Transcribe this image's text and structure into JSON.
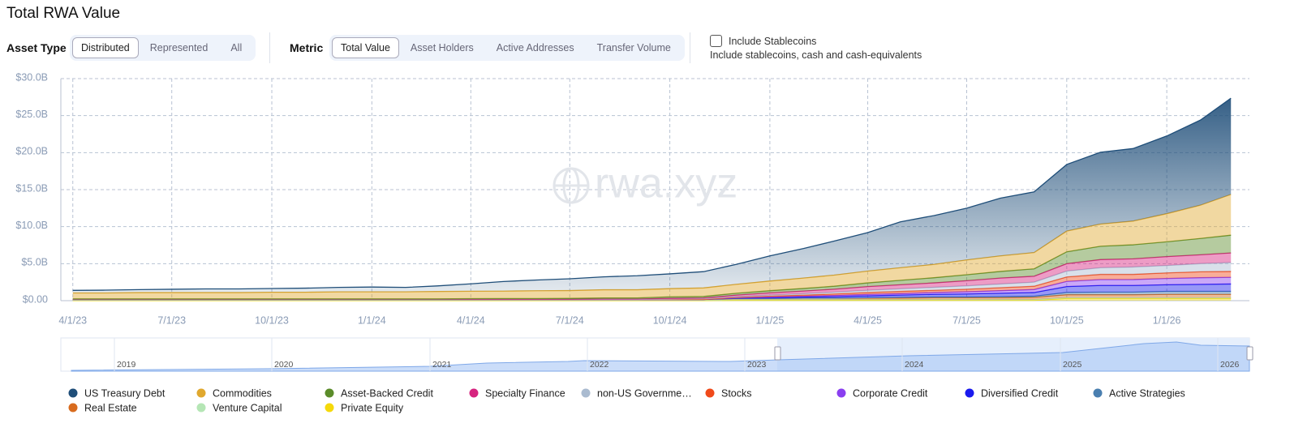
{
  "header": {
    "title": "Total RWA Value"
  },
  "controls": {
    "asset_type": {
      "label": "Asset Type",
      "options": [
        "Distributed",
        "Represented",
        "All"
      ]
    },
    "metric": {
      "label": "Metric",
      "options": [
        "Total Value",
        "Asset Holders",
        "Active Addresses",
        "Transfer Volume"
      ]
    },
    "stablecoins": {
      "label": "Include Stablecoins",
      "description": "Include stablecoins, cash and cash-equivalents"
    }
  },
  "chart_data": {
    "type": "area",
    "stacked": true,
    "grid": true,
    "watermark": "rwa.xyz",
    "x": [
      "4/1/23",
      "5/1/23",
      "6/1/23",
      "7/1/23",
      "8/1/23",
      "9/1/23",
      "10/1/23",
      "11/1/23",
      "12/1/23",
      "1/1/24",
      "2/1/24",
      "3/1/24",
      "4/1/24",
      "5/1/24",
      "6/1/24",
      "7/1/24",
      "8/1/24",
      "9/1/24",
      "10/1/24",
      "11/1/24",
      "12/1/24",
      "1/1/25",
      "2/1/25",
      "3/1/25",
      "4/1/25",
      "5/1/25",
      "6/1/25",
      "7/1/25",
      "8/1/25",
      "9/1/25",
      "10/1/25",
      "11/1/25",
      "12/1/25",
      "1/1/26",
      "2/1/26",
      "3/1/26"
    ],
    "xlim": [
      "3/21/23",
      "3/18/26"
    ],
    "xticks": [
      "4/1/23",
      "7/1/23",
      "10/1/23",
      "1/1/24",
      "4/1/24",
      "7/1/24",
      "10/1/24",
      "1/1/25",
      "4/1/25",
      "7/1/25",
      "10/1/25",
      "1/1/26"
    ],
    "ylim": [
      0,
      30
    ],
    "yticks": [
      {
        "value": 0,
        "label": "$0.00"
      },
      {
        "value": 5,
        "label": "$5.0B"
      },
      {
        "value": 10,
        "label": "$10.0B"
      },
      {
        "value": 15,
        "label": "$15.0B"
      },
      {
        "value": 20,
        "label": "$20.0B"
      },
      {
        "value": 25,
        "label": "$25.0B"
      },
      {
        "value": 30,
        "label": "$30.0B"
      }
    ],
    "series": [
      {
        "name": "US Treasury Debt",
        "color": "#1f4e79",
        "values": [
          0.35,
          0.38,
          0.4,
          0.45,
          0.5,
          0.5,
          0.5,
          0.55,
          0.6,
          0.65,
          0.6,
          0.75,
          1.0,
          1.3,
          1.45,
          1.6,
          1.75,
          1.9,
          2.0,
          2.2,
          2.7,
          3.4,
          4.0,
          4.6,
          5.2,
          6.2,
          6.6,
          7.0,
          7.8,
          8.2,
          9.0,
          9.7,
          9.8,
          10.5,
          11.5,
          13.0
        ]
      },
      {
        "name": "Commodities",
        "color": "#e0a82e",
        "values": [
          0.8,
          0.8,
          0.85,
          0.85,
          0.85,
          0.85,
          0.9,
          0.9,
          0.95,
          0.95,
          0.95,
          1.0,
          1.0,
          1.0,
          1.05,
          1.05,
          1.1,
          1.1,
          1.1,
          1.15,
          1.2,
          1.3,
          1.4,
          1.5,
          1.6,
          1.7,
          1.8,
          2.0,
          2.1,
          2.2,
          2.8,
          3.0,
          3.2,
          3.8,
          4.5,
          5.5
        ]
      },
      {
        "name": "Asset-Backed Credit",
        "color": "#5b8c2a",
        "values": [
          0.05,
          0.05,
          0.05,
          0.05,
          0.05,
          0.05,
          0.05,
          0.05,
          0.05,
          0.05,
          0.05,
          0.05,
          0.08,
          0.1,
          0.1,
          0.12,
          0.15,
          0.15,
          0.2,
          0.2,
          0.25,
          0.3,
          0.35,
          0.4,
          0.5,
          0.6,
          0.7,
          0.8,
          0.9,
          1.0,
          1.6,
          1.8,
          1.9,
          2.0,
          2.2,
          2.4
        ]
      },
      {
        "name": "Specialty Finance",
        "color": "#d6247f",
        "values": [
          0.02,
          0.02,
          0.02,
          0.02,
          0.02,
          0.02,
          0.02,
          0.02,
          0.02,
          0.02,
          0.02,
          0.02,
          0.02,
          0.02,
          0.02,
          0.02,
          0.05,
          0.05,
          0.1,
          0.1,
          0.2,
          0.3,
          0.35,
          0.4,
          0.5,
          0.55,
          0.6,
          0.7,
          0.8,
          0.8,
          1.0,
          1.1,
          1.1,
          1.2,
          1.2,
          1.3
        ]
      },
      {
        "name": "non-US Governme…",
        "color": "#aabbd0",
        "values": [
          0,
          0,
          0,
          0,
          0,
          0,
          0,
          0,
          0,
          0,
          0,
          0,
          0,
          0,
          0,
          0,
          0,
          0,
          0.05,
          0.1,
          0.1,
          0.15,
          0.2,
          0.25,
          0.3,
          0.35,
          0.4,
          0.45,
          0.5,
          0.55,
          0.8,
          0.9,
          1.0,
          1.0,
          1.1,
          1.2
        ]
      },
      {
        "name": "Stocks",
        "color": "#f04a1a",
        "values": [
          0,
          0,
          0,
          0,
          0,
          0,
          0,
          0,
          0,
          0,
          0,
          0,
          0,
          0,
          0,
          0,
          0,
          0,
          0,
          0,
          0.05,
          0.1,
          0.15,
          0.2,
          0.25,
          0.3,
          0.3,
          0.35,
          0.4,
          0.45,
          0.6,
          0.7,
          0.7,
          0.75,
          0.8,
          0.8
        ]
      },
      {
        "name": "Corporate Credit",
        "color": "#8a3ff0",
        "values": [
          0,
          0,
          0,
          0,
          0,
          0,
          0,
          0,
          0,
          0,
          0,
          0,
          0,
          0,
          0,
          0,
          0,
          0,
          0,
          0,
          0.05,
          0.1,
          0.1,
          0.15,
          0.2,
          0.2,
          0.25,
          0.3,
          0.35,
          0.4,
          0.7,
          0.8,
          0.8,
          0.85,
          0.9,
          0.9
        ]
      },
      {
        "name": "Diversified Credit",
        "color": "#1a1aee",
        "values": [
          0,
          0,
          0,
          0,
          0,
          0,
          0,
          0,
          0,
          0,
          0,
          0,
          0,
          0,
          0,
          0,
          0,
          0,
          0,
          0,
          0.05,
          0.1,
          0.15,
          0.2,
          0.25,
          0.3,
          0.35,
          0.4,
          0.45,
          0.5,
          0.8,
          0.9,
          0.9,
          0.9,
          0.95,
          1.0
        ]
      },
      {
        "name": "Active Strategies",
        "color": "#4a7fb0",
        "values": [
          0,
          0,
          0,
          0,
          0,
          0,
          0,
          0,
          0,
          0,
          0,
          0,
          0,
          0,
          0,
          0,
          0,
          0,
          0,
          0,
          0,
          0,
          0,
          0,
          0.05,
          0.1,
          0.1,
          0.1,
          0.15,
          0.15,
          0.3,
          0.35,
          0.35,
          0.4,
          0.4,
          0.4
        ]
      },
      {
        "name": "Real Estate",
        "color": "#d86b1e",
        "values": [
          0.1,
          0.1,
          0.1,
          0.1,
          0.1,
          0.1,
          0.1,
          0.1,
          0.1,
          0.1,
          0.1,
          0.1,
          0.1,
          0.1,
          0.1,
          0.1,
          0.1,
          0.1,
          0.1,
          0.1,
          0.15,
          0.15,
          0.2,
          0.2,
          0.2,
          0.2,
          0.25,
          0.25,
          0.25,
          0.3,
          0.4,
          0.4,
          0.4,
          0.45,
          0.45,
          0.45
        ]
      },
      {
        "name": "Venture Capital",
        "color": "#b5e6b5",
        "values": [
          0.05,
          0.05,
          0.05,
          0.05,
          0.05,
          0.05,
          0.05,
          0.05,
          0.05,
          0.05,
          0.05,
          0.05,
          0.05,
          0.05,
          0.05,
          0.05,
          0.05,
          0.05,
          0.05,
          0.05,
          0.1,
          0.1,
          0.1,
          0.1,
          0.1,
          0.1,
          0.1,
          0.1,
          0.1,
          0.1,
          0.1,
          0.1,
          0.1,
          0.1,
          0.1,
          0.1
        ]
      },
      {
        "name": "Private Equity",
        "color": "#f5d90a",
        "values": [
          0.02,
          0.02,
          0.02,
          0.02,
          0.02,
          0.02,
          0.02,
          0.02,
          0.02,
          0.02,
          0.02,
          0.02,
          0.02,
          0.02,
          0.02,
          0.02,
          0.02,
          0.02,
          0.02,
          0.02,
          0.05,
          0.05,
          0.05,
          0.05,
          0.05,
          0.05,
          0.05,
          0.05,
          0.05,
          0.05,
          0.3,
          0.3,
          0.3,
          0.3,
          0.3,
          0.3
        ]
      }
    ],
    "navigator": {
      "labels": [
        "2019",
        "2020",
        "2021",
        "2022",
        "2023",
        "2024",
        "2025",
        "2026"
      ]
    }
  }
}
